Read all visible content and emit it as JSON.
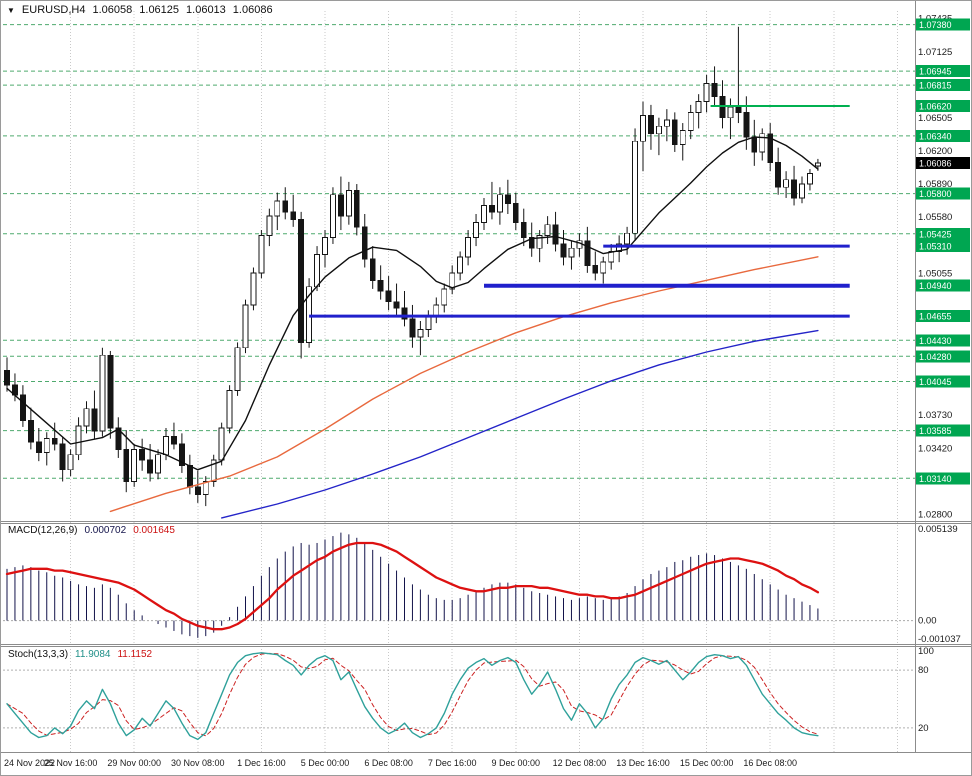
{
  "window": {
    "symbol_period": "EURUSD,H4",
    "open": "1.06058",
    "high": "1.06125",
    "low": "1.06013",
    "close": "1.06086"
  },
  "colors": {
    "bull": "#ffffff",
    "bear": "#151515",
    "outline": "#151515",
    "ma_fast": "#101010",
    "ma_mid": "#e8693e",
    "ma_slow": "#2424c8",
    "level_dashed": "#4faa6e",
    "level_solid": "#00b050",
    "support_blue": "#2020cc",
    "macd_hist": "#13134a",
    "macd_signal": "#dd1111",
    "stoch_k": "#2fa19b",
    "stoch_d": "#cc2222",
    "label_box_green": "#00a651",
    "label_box_black": "#000000",
    "grid": "#c9c9c9",
    "text": "#1a1a1a"
  },
  "price_axis": {
    "plain_labels": [
      "1.07435",
      "1.07125",
      "1.06505",
      "1.06200",
      "1.05890",
      "1.05580",
      "1.05055",
      "1.03730",
      "1.03420",
      "1.02800"
    ],
    "level_boxes": [
      "1.07380",
      "1.06945",
      "1.06815",
      "1.06620",
      "1.06340",
      "1.05800",
      "1.05425",
      "1.05310",
      "1.04940",
      "1.04655",
      "1.04430",
      "1.04280",
      "1.04045",
      "1.03585",
      "1.03140"
    ],
    "current_price": "1.06086"
  },
  "time_axis": {
    "labels": [
      "24 Nov 2022",
      "25 Nov 16:00",
      "29 Nov 00:00",
      "30 Nov 08:00",
      "1 Dec 16:00",
      "5 Dec 00:00",
      "6 Dec 08:00",
      "7 Dec 16:00",
      "9 Dec 00:00",
      "12 Dec 08:00",
      "13 Dec 16:00",
      "15 Dec 00:00",
      "16 Dec 08:00"
    ],
    "bars_per_label": 8
  },
  "chart_data": {
    "type": "candlestick",
    "symbol": "EURUSD",
    "timeframe": "H4",
    "price_range": [
      1.0275,
      1.0747
    ],
    "candles": [
      [
        1.0415,
        1.0427,
        1.0395,
        1.0401
      ],
      [
        1.0401,
        1.0412,
        1.0386,
        1.0392
      ],
      [
        1.0392,
        1.0401,
        1.0362,
        1.0368
      ],
      [
        1.0368,
        1.038,
        1.0341,
        1.0348
      ],
      [
        1.0348,
        1.0361,
        1.033,
        1.0338
      ],
      [
        1.0338,
        1.0357,
        1.0326,
        1.0351
      ],
      [
        1.0351,
        1.0366,
        1.034,
        1.0346
      ],
      [
        1.0346,
        1.0353,
        1.0311,
        1.0322
      ],
      [
        1.0322,
        1.0341,
        1.0316,
        1.0336
      ],
      [
        1.0336,
        1.0371,
        1.0331,
        1.0363
      ],
      [
        1.0363,
        1.0386,
        1.0356,
        1.0379
      ],
      [
        1.0379,
        1.0396,
        1.0351,
        1.0358
      ],
      [
        1.0358,
        1.0436,
        1.0353,
        1.0429
      ],
      [
        1.0429,
        1.0433,
        1.0351,
        1.0361
      ],
      [
        1.0361,
        1.0371,
        1.0333,
        1.0341
      ],
      [
        1.0341,
        1.0359,
        1.0301,
        1.0311
      ],
      [
        1.0311,
        1.0346,
        1.0306,
        1.0341
      ],
      [
        1.0341,
        1.0351,
        1.0321,
        1.0331
      ],
      [
        1.0331,
        1.0346,
        1.0311,
        1.0319
      ],
      [
        1.0319,
        1.0341,
        1.0313,
        1.0336
      ],
      [
        1.0336,
        1.0361,
        1.0331,
        1.0353
      ],
      [
        1.0353,
        1.0366,
        1.0341,
        1.0346
      ],
      [
        1.0346,
        1.0356,
        1.0319,
        1.0326
      ],
      [
        1.0326,
        1.0336,
        1.0299,
        1.0306
      ],
      [
        1.0306,
        1.0321,
        1.0291,
        1.0299
      ],
      [
        1.0299,
        1.0316,
        1.0288,
        1.0311
      ],
      [
        1.0311,
        1.0336,
        1.0306,
        1.0331
      ],
      [
        1.0331,
        1.0366,
        1.0326,
        1.0361
      ],
      [
        1.0361,
        1.0401,
        1.0356,
        1.0396
      ],
      [
        1.0396,
        1.0441,
        1.0391,
        1.0436
      ],
      [
        1.0436,
        1.0481,
        1.0431,
        1.0476
      ],
      [
        1.0476,
        1.0511,
        1.0471,
        1.0506
      ],
      [
        1.0506,
        1.0546,
        1.0501,
        1.0541
      ],
      [
        1.0541,
        1.0566,
        1.0531,
        1.0559
      ],
      [
        1.0559,
        1.0581,
        1.0546,
        1.0573
      ],
      [
        1.0573,
        1.0586,
        1.0556,
        1.0563
      ],
      [
        1.0563,
        1.0579,
        1.0549,
        1.0556
      ],
      [
        1.0556,
        1.0563,
        1.0426,
        1.0441
      ],
      [
        1.0441,
        1.0501,
        1.0436,
        1.0493
      ],
      [
        1.0493,
        1.0531,
        1.0489,
        1.0523
      ],
      [
        1.0523,
        1.0546,
        1.0511,
        1.0539
      ],
      [
        1.0539,
        1.0586,
        1.0533,
        1.0579
      ],
      [
        1.0579,
        1.0596,
        1.0546,
        1.0559
      ],
      [
        1.0559,
        1.0591,
        1.0551,
        1.0583
      ],
      [
        1.0583,
        1.0589,
        1.0541,
        1.0549
      ],
      [
        1.0549,
        1.0561,
        1.0511,
        1.0519
      ],
      [
        1.0519,
        1.0531,
        1.0491,
        1.0499
      ],
      [
        1.0499,
        1.0513,
        1.0481,
        1.0489
      ],
      [
        1.0489,
        1.0503,
        1.0471,
        1.0479
      ],
      [
        1.0479,
        1.0496,
        1.0466,
        1.0473
      ],
      [
        1.0473,
        1.0489,
        1.0456,
        1.0463
      ],
      [
        1.0463,
        1.0476,
        1.0436,
        1.0446
      ],
      [
        1.0446,
        1.0461,
        1.0429,
        1.0453
      ],
      [
        1.0453,
        1.0471,
        1.0446,
        1.0466
      ],
      [
        1.0466,
        1.0483,
        1.0459,
        1.0476
      ],
      [
        1.0476,
        1.0496,
        1.0469,
        1.0491
      ],
      [
        1.0491,
        1.0513,
        1.0486,
        1.0506
      ],
      [
        1.0506,
        1.0526,
        1.0499,
        1.0521
      ],
      [
        1.0521,
        1.0546,
        1.0513,
        1.0539
      ],
      [
        1.0539,
        1.0561,
        1.0531,
        1.0553
      ],
      [
        1.0553,
        1.0576,
        1.0546,
        1.0569
      ],
      [
        1.0569,
        1.0591,
        1.0556,
        1.0563
      ],
      [
        1.0563,
        1.0586,
        1.0551,
        1.0579
      ],
      [
        1.0579,
        1.0593,
        1.0561,
        1.0571
      ],
      [
        1.0571,
        1.0581,
        1.0546,
        1.0553
      ],
      [
        1.0553,
        1.0566,
        1.0531,
        1.0539
      ],
      [
        1.0539,
        1.0553,
        1.0521,
        1.0529
      ],
      [
        1.0529,
        1.0546,
        1.0516,
        1.0541
      ],
      [
        1.0541,
        1.0559,
        1.0533,
        1.0551
      ],
      [
        1.0551,
        1.0563,
        1.0526,
        1.0533
      ],
      [
        1.0533,
        1.0546,
        1.0513,
        1.0521
      ],
      [
        1.0521,
        1.0536,
        1.0509,
        1.0529
      ],
      [
        1.0529,
        1.0543,
        1.0521,
        1.0536
      ],
      [
        1.0536,
        1.0549,
        1.0506,
        1.0513
      ],
      [
        1.0513,
        1.0526,
        1.0499,
        1.0506
      ],
      [
        1.0506,
        1.0521,
        1.0496,
        1.0516
      ],
      [
        1.0516,
        1.0533,
        1.0509,
        1.0526
      ],
      [
        1.0526,
        1.0541,
        1.0516,
        1.0533
      ],
      [
        1.0533,
        1.0549,
        1.0523,
        1.0543
      ],
      [
        1.0543,
        1.0641,
        1.0536,
        1.0629
      ],
      [
        1.0629,
        1.0666,
        1.0601,
        1.0653
      ],
      [
        1.0653,
        1.0663,
        1.0621,
        1.0636
      ],
      [
        1.0636,
        1.0651,
        1.0616,
        1.0643
      ],
      [
        1.0643,
        1.0659,
        1.0629,
        1.0649
      ],
      [
        1.0649,
        1.0656,
        1.0619,
        1.0626
      ],
      [
        1.0626,
        1.0646,
        1.0611,
        1.0639
      ],
      [
        1.0639,
        1.0663,
        1.0631,
        1.0656
      ],
      [
        1.0656,
        1.0673,
        1.0641,
        1.0666
      ],
      [
        1.0666,
        1.0691,
        1.0656,
        1.0683
      ],
      [
        1.0683,
        1.0699,
        1.0661,
        1.0671
      ],
      [
        1.0671,
        1.0686,
        1.0641,
        1.0651
      ],
      [
        1.0651,
        1.0669,
        1.0631,
        1.0661
      ],
      [
        1.0661,
        1.0736,
        1.0646,
        1.0656
      ],
      [
        1.0656,
        1.0671,
        1.0621,
        1.0633
      ],
      [
        1.0633,
        1.0649,
        1.0606,
        1.0619
      ],
      [
        1.0619,
        1.0641,
        1.0611,
        1.0636
      ],
      [
        1.0636,
        1.0646,
        1.0601,
        1.0609
      ],
      [
        1.0609,
        1.0623,
        1.0579,
        1.0586
      ],
      [
        1.0586,
        1.0601,
        1.0576,
        1.0593
      ],
      [
        1.0593,
        1.0606,
        1.0569,
        1.0576
      ],
      [
        1.0576,
        1.0596,
        1.0571,
        1.0589
      ],
      [
        1.0589,
        1.0603,
        1.0583,
        1.0599
      ],
      [
        1.06058,
        1.06125,
        1.06013,
        1.06086
      ]
    ],
    "ma_fast_wp": [
      [
        0,
        1.0398
      ],
      [
        4,
        1.0372
      ],
      [
        8,
        1.0346
      ],
      [
        12,
        1.0352
      ],
      [
        14,
        1.036
      ],
      [
        16,
        1.0345
      ],
      [
        20,
        1.0336
      ],
      [
        24,
        1.0322
      ],
      [
        27,
        1.033
      ],
      [
        30,
        1.0368
      ],
      [
        33,
        1.042
      ],
      [
        36,
        1.0466
      ],
      [
        38,
        1.0485
      ],
      [
        40,
        1.0502
      ],
      [
        43,
        1.052
      ],
      [
        46,
        1.053
      ],
      [
        49,
        1.0527
      ],
      [
        52,
        1.0512
      ],
      [
        54,
        1.0498
      ],
      [
        56,
        1.0492
      ],
      [
        58,
        1.0497
      ],
      [
        60,
        1.051
      ],
      [
        63,
        1.0528
      ],
      [
        66,
        1.0538
      ],
      [
        69,
        1.054
      ],
      [
        72,
        1.0534
      ],
      [
        75,
        1.0524
      ],
      [
        78,
        1.0528
      ],
      [
        80,
        1.0545
      ],
      [
        82,
        1.0562
      ],
      [
        84,
        1.0576
      ],
      [
        86,
        1.059
      ],
      [
        88,
        1.0605
      ],
      [
        90,
        1.0618
      ],
      [
        92,
        1.0628
      ],
      [
        94,
        1.0633
      ],
      [
        96,
        1.0632
      ],
      [
        98,
        1.0625
      ],
      [
        100,
        1.0615
      ],
      [
        102,
        1.0603
      ]
    ],
    "ma_mid_wp": [
      [
        13,
        1.0283
      ],
      [
        20,
        1.03
      ],
      [
        28,
        1.0316
      ],
      [
        34,
        1.0334
      ],
      [
        40,
        1.036
      ],
      [
        46,
        1.0388
      ],
      [
        52,
        1.0412
      ],
      [
        58,
        1.0432
      ],
      [
        64,
        1.045
      ],
      [
        70,
        1.0465
      ],
      [
        76,
        1.0478
      ],
      [
        82,
        1.0489
      ],
      [
        88,
        1.0499
      ],
      [
        94,
        1.0509
      ],
      [
        102,
        1.0521
      ]
    ],
    "ma_slow_wp": [
      [
        27,
        1.0277
      ],
      [
        34,
        1.029
      ],
      [
        40,
        1.0303
      ],
      [
        46,
        1.0318
      ],
      [
        52,
        1.0334
      ],
      [
        58,
        1.0352
      ],
      [
        64,
        1.037
      ],
      [
        70,
        1.0388
      ],
      [
        76,
        1.0405
      ],
      [
        82,
        1.042
      ],
      [
        88,
        1.0432
      ],
      [
        94,
        1.0442
      ],
      [
        102,
        1.0452
      ]
    ],
    "levels": {
      "dashed": [
        1.0738,
        1.06945,
        1.06815,
        1.0634,
        1.058,
        1.05425,
        1.0443,
        1.0428,
        1.04045,
        1.03585,
        1.0314
      ],
      "solid_green": {
        "price": 1.0662,
        "from_index": 88.5,
        "to_index": 106
      },
      "blue_thick": [
        {
          "price": 1.0531,
          "from_index": 75,
          "to_index": 106,
          "width": 3
        },
        {
          "price": 1.0494,
          "from_index": 60,
          "to_index": 106,
          "width": 4
        },
        {
          "price": 1.04655,
          "from_index": 38,
          "to_index": 106,
          "width": 3
        }
      ]
    },
    "macd": {
      "label": "MACD(12,26,9)",
      "value_main": "0.000702",
      "value_signal": "0.001645",
      "axis": {
        "max_label": "0.005139",
        "zero_label": "0.00",
        "min_label": "-0.001037"
      },
      "hist": [
        0.003,
        0.0031,
        0.0032,
        0.0031,
        0.0029,
        0.0028,
        0.0026,
        0.0025,
        0.0023,
        0.0021,
        0.002,
        0.0019,
        0.0021,
        0.0019,
        0.0015,
        0.001,
        0.0006,
        0.0003,
        0.0,
        -0.0002,
        -0.0004,
        -0.0006,
        -0.0008,
        -0.0009,
        -0.001,
        -0.0009,
        -0.0007,
        -0.0003,
        0.0002,
        0.0008,
        0.0014,
        0.002,
        0.0026,
        0.0031,
        0.0036,
        0.004,
        0.0043,
        0.0045,
        0.0044,
        0.0045,
        0.0047,
        0.0049,
        0.0051,
        0.005,
        0.0048,
        0.0045,
        0.0041,
        0.0037,
        0.0033,
        0.0029,
        0.0025,
        0.0021,
        0.0018,
        0.0015,
        0.0013,
        0.0012,
        0.0012,
        0.0013,
        0.0015,
        0.0017,
        0.0019,
        0.0021,
        0.0022,
        0.0022,
        0.0021,
        0.0019,
        0.0017,
        0.0016,
        0.0015,
        0.0014,
        0.0013,
        0.0012,
        0.0013,
        0.0014,
        0.0013,
        0.0012,
        0.0013,
        0.0014,
        0.0016,
        0.002,
        0.0024,
        0.0027,
        0.0029,
        0.0031,
        0.0034,
        0.0035,
        0.0037,
        0.0038,
        0.0039,
        0.0038,
        0.0036,
        0.0034,
        0.0032,
        0.003,
        0.0027,
        0.0024,
        0.0021,
        0.0018,
        0.0015,
        0.0013,
        0.0011,
        0.0009,
        0.0007
      ],
      "signal": [
        0.0027,
        0.0028,
        0.0029,
        0.003,
        0.003,
        0.003,
        0.0029,
        0.0029,
        0.0028,
        0.0027,
        0.0026,
        0.0025,
        0.0024,
        0.0023,
        0.0022,
        0.002,
        0.0018,
        0.0015,
        0.0012,
        0.0009,
        0.0006,
        0.0004,
        0.0001,
        -0.0001,
        -0.0003,
        -0.0004,
        -0.0005,
        -0.0005,
        -0.0004,
        -0.0002,
        0.0001,
        0.0005,
        0.0009,
        0.0013,
        0.0018,
        0.0022,
        0.0026,
        0.0029,
        0.0032,
        0.0035,
        0.0037,
        0.004,
        0.0042,
        0.0044,
        0.0045,
        0.0045,
        0.0045,
        0.0044,
        0.0042,
        0.004,
        0.0037,
        0.0034,
        0.0031,
        0.0028,
        0.0025,
        0.0023,
        0.0021,
        0.0019,
        0.0018,
        0.0017,
        0.0017,
        0.0018,
        0.0019,
        0.0019,
        0.002,
        0.002,
        0.002,
        0.0019,
        0.0019,
        0.0018,
        0.0017,
        0.0016,
        0.0015,
        0.0015,
        0.0014,
        0.0014,
        0.0013,
        0.0013,
        0.0014,
        0.0015,
        0.0017,
        0.0019,
        0.0021,
        0.0023,
        0.0025,
        0.0027,
        0.0029,
        0.0031,
        0.0033,
        0.0034,
        0.0035,
        0.0036,
        0.0036,
        0.0035,
        0.0034,
        0.0033,
        0.0031,
        0.0029,
        0.0026,
        0.0024,
        0.0021,
        0.0019,
        0.00164
      ]
    },
    "stoch": {
      "label": "Stoch(13,3,3)",
      "value_k": "11.9084",
      "value_d": "11.1152",
      "axis_labels": [
        "100",
        "80",
        "20"
      ],
      "guide_levels": [
        80,
        20
      ],
      "k": [
        45,
        35,
        25,
        15,
        10,
        12,
        20,
        14,
        22,
        38,
        48,
        40,
        60,
        45,
        25,
        12,
        18,
        30,
        22,
        35,
        48,
        40,
        25,
        12,
        8,
        15,
        35,
        55,
        75,
        88,
        95,
        97,
        98,
        97,
        96,
        90,
        85,
        75,
        85,
        92,
        95,
        90,
        70,
        78,
        60,
        42,
        30,
        20,
        14,
        18,
        25,
        15,
        10,
        14,
        20,
        35,
        55,
        70,
        82,
        88,
        92,
        85,
        90,
        93,
        88,
        70,
        55,
        65,
        78,
        60,
        40,
        28,
        45,
        35,
        20,
        30,
        50,
        65,
        75,
        88,
        93,
        90,
        86,
        90,
        80,
        70,
        78,
        88,
        94,
        96,
        95,
        92,
        94,
        85,
        70,
        55,
        45,
        35,
        28,
        20,
        15,
        13,
        11.9
      ]
    }
  }
}
